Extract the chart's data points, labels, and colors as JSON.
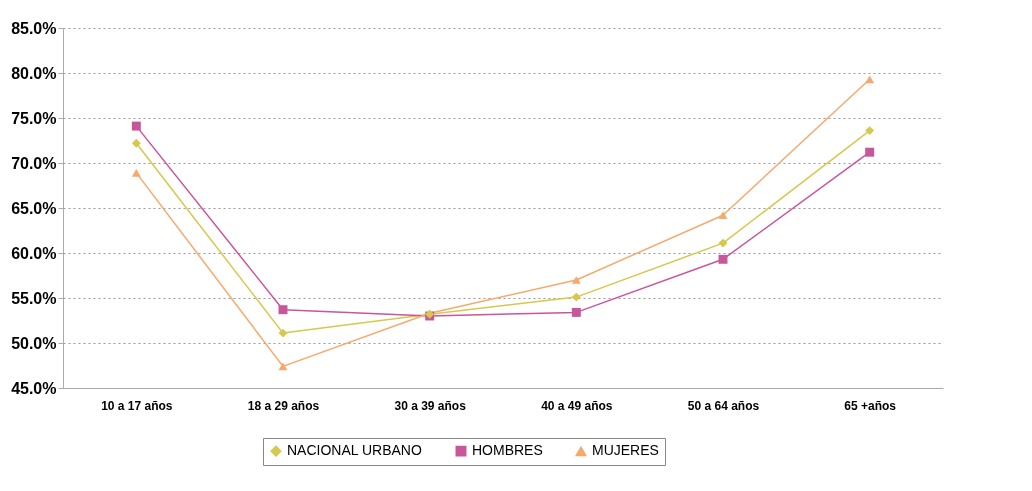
{
  "chart_data": {
    "type": "line",
    "categories": [
      "10 a 17 años",
      "18 a 29 años",
      "30 a 39 años",
      "40 a 49 años",
      "50 a 64 años",
      "65 +años"
    ],
    "series": [
      {
        "name": "NACIONAL URBANO",
        "color": "#d6c84c",
        "marker": "diamond",
        "values": [
          72.2,
          51.1,
          53.2,
          55.1,
          61.1,
          73.6
        ]
      },
      {
        "name": "HOMBRES",
        "color": "#c8569b",
        "marker": "square",
        "values": [
          74.1,
          53.7,
          53.0,
          53.4,
          59.3,
          71.2
        ]
      },
      {
        "name": "MUJERES",
        "color": "#f6a96c",
        "marker": "triangle",
        "values": [
          68.9,
          47.4,
          53.3,
          57.0,
          64.2,
          79.3
        ]
      }
    ],
    "ylim": [
      45,
      85
    ],
    "yticks": [
      {
        "value": 45,
        "label": "45.0%"
      },
      {
        "value": 50,
        "label": "50.0%"
      },
      {
        "value": 55,
        "label": "55.0%"
      },
      {
        "value": 60,
        "label": "60.0%"
      },
      {
        "value": 65,
        "label": "65.0%"
      },
      {
        "value": 70,
        "label": "70.0%"
      },
      {
        "value": 75,
        "label": "75.0%"
      },
      {
        "value": 80,
        "label": "80.0%"
      },
      {
        "value": 85,
        "label": "85.0%"
      }
    ],
    "grid": "y",
    "legend": "bottom",
    "line_style": "solid"
  }
}
